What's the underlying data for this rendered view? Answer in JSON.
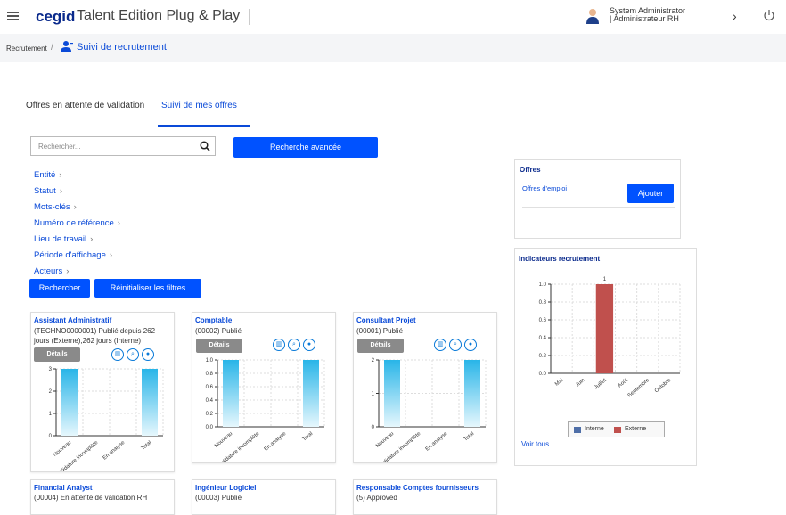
{
  "header": {
    "logo": "cegid",
    "app_title": "Talent Edition Plug & Play",
    "user_line1": "System Administrator",
    "user_line2": "| Administrateur RH"
  },
  "breadcrumb": {
    "root": "Recrutement",
    "separator": "/",
    "current": "Suivi de recrutement"
  },
  "tabs": [
    {
      "label": "Offres en attente de validation"
    },
    {
      "label": "Suivi de mes offres"
    }
  ],
  "search": {
    "placeholder": "Rechercher..."
  },
  "buttons": {
    "advanced": "Recherche avancée",
    "search": "Rechercher",
    "reset": "Réinitialiser les filtres",
    "details": "Détails",
    "add": "Ajouter"
  },
  "filters": [
    {
      "label": "Entité"
    },
    {
      "label": "Statut"
    },
    {
      "label": "Mots-clés"
    },
    {
      "label": "Numéro de référence"
    },
    {
      "label": "Lieu de travail"
    },
    {
      "label": "Période d'affichage"
    },
    {
      "label": "Acteurs"
    }
  ],
  "job_cards": [
    {
      "title": "Assistant Administratif",
      "subtitle": "(TECHNO0000001) Publié depuis 262 jours (Externe),262 jours (Interne)"
    },
    {
      "title": "Comptable",
      "subtitle": "(00002) Publié"
    },
    {
      "title": "Consultant Projet",
      "subtitle": "(00001) Publié"
    },
    {
      "title": "Financial Analyst",
      "subtitle": "(00004) En attente de validation RH"
    },
    {
      "title": "Ingénieur Logiciel",
      "subtitle": "(00003) Publié"
    },
    {
      "title": "Responsable Comptes fournisseurs",
      "subtitle": "(5) Approved"
    }
  ],
  "offres": {
    "title": "Offres",
    "link": "Offres d'emploi"
  },
  "indicators": {
    "title": "Indicateurs recrutement",
    "voir_tous": "Voir tous"
  },
  "colors": {
    "accent": "#0052ff",
    "interne": "#4f6fa8",
    "externe": "#c0504d",
    "mini_bar": "#29b5e8"
  },
  "icons": [
    "hamburger-icon",
    "user-avatar-icon",
    "chevron-right-icon",
    "power-icon",
    "recruit-person-icon",
    "search-icon",
    "bar-chart-icon",
    "magnifier-icon",
    "person-icon"
  ],
  "chart_data": [
    {
      "type": "bar",
      "title": "Assistant Administratif",
      "categories": [
        "Nouveau",
        "Candidature incomplète",
        "En analyse",
        "Total"
      ],
      "values": [
        3,
        0,
        0,
        3
      ],
      "ylim": [
        0,
        3
      ],
      "yticks": [
        "0",
        "1",
        "2",
        "3"
      ],
      "grid": true
    },
    {
      "type": "bar",
      "title": "Comptable",
      "categories": [
        "Nouveau",
        "Candidature incomplète",
        "En analyse",
        "Total"
      ],
      "values": [
        1,
        0,
        0,
        1
      ],
      "ylim": [
        0,
        1
      ],
      "yticks": [
        "0.0",
        "0.2",
        "0.4",
        "0.6",
        "0.8",
        "1.0"
      ],
      "grid": true
    },
    {
      "type": "bar",
      "title": "Consultant Projet",
      "categories": [
        "Nouveau",
        "Candidature incomplète",
        "En analyse",
        "Total"
      ],
      "values": [
        2,
        0,
        0,
        2
      ],
      "ylim": [
        0,
        2
      ],
      "yticks": [
        "0",
        "1",
        "2"
      ],
      "grid": true
    },
    {
      "type": "bar",
      "title": "Indicateurs recrutement",
      "categories": [
        "Mai",
        "Juin",
        "Juillet",
        "Août",
        "Septembre",
        "Octobre"
      ],
      "series": [
        {
          "name": "Interne",
          "values": [
            0,
            0,
            0,
            0,
            0,
            0
          ]
        },
        {
          "name": "Externe",
          "values": [
            0,
            0,
            1,
            0,
            0,
            0
          ]
        }
      ],
      "data_labels": [
        "",
        "",
        "1",
        "",
        "",
        ""
      ],
      "ylim": [
        0,
        1
      ],
      "yticks": [
        "0.0",
        "0.2",
        "0.4",
        "0.6",
        "0.8",
        "1.0"
      ],
      "legend": "bottom",
      "grid": true
    }
  ]
}
